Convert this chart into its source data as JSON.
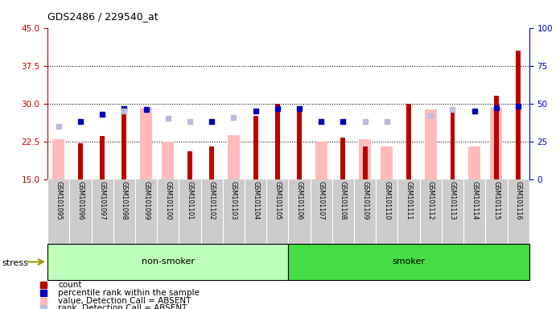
{
  "title": "GDS2486 / 229540_at",
  "samples": [
    "GSM101095",
    "GSM101096",
    "GSM101097",
    "GSM101098",
    "GSM101099",
    "GSM101100",
    "GSM101101",
    "GSM101102",
    "GSM101103",
    "GSM101104",
    "GSM101105",
    "GSM101106",
    "GSM101107",
    "GSM101108",
    "GSM101109",
    "GSM101110",
    "GSM101111",
    "GSM101112",
    "GSM101113",
    "GSM101114",
    "GSM101115",
    "GSM101116"
  ],
  "red_bar": [
    null,
    22.2,
    23.5,
    29.2,
    null,
    null,
    20.5,
    21.5,
    null,
    27.5,
    30.0,
    29.2,
    null,
    23.2,
    21.5,
    null,
    30.0,
    null,
    29.2,
    null,
    31.5,
    40.5
  ],
  "pink_bar": [
    23.0,
    null,
    null,
    null,
    29.2,
    22.5,
    null,
    null,
    23.8,
    null,
    null,
    null,
    22.5,
    null,
    23.0,
    21.5,
    null,
    28.8,
    null,
    21.5,
    29.2,
    null
  ],
  "blue_sq": [
    null,
    26.5,
    27.8,
    29.0,
    28.8,
    null,
    null,
    26.5,
    null,
    28.5,
    29.0,
    29.0,
    26.5,
    26.5,
    null,
    null,
    null,
    null,
    null,
    28.5,
    29.2,
    29.5
  ],
  "lblue_sq": [
    25.5,
    null,
    null,
    28.5,
    null,
    27.0,
    26.5,
    null,
    27.2,
    null,
    null,
    null,
    null,
    null,
    26.5,
    26.5,
    null,
    27.5,
    28.8,
    null,
    null,
    null
  ],
  "non_smoker_count": 11,
  "ylim_left": [
    15,
    45
  ],
  "ylim_right": [
    0,
    100
  ],
  "yticks_left": [
    15,
    22.5,
    30,
    37.5,
    45
  ],
  "yticks_right": [
    0,
    25,
    50,
    75,
    100
  ],
  "red_color": "#bb0000",
  "pink_color": "#ffbbbb",
  "blue_color": "#0000bb",
  "lblue_color": "#bbbbdd",
  "nonsmoker_color": "#bbffbb",
  "smoker_color": "#44dd44",
  "axis_bg": "#ffffff",
  "xlabel_bg": "#cccccc",
  "grid_color": "#000000",
  "legend_items": [
    {
      "color": "#bb0000",
      "label": "count"
    },
    {
      "color": "#0000bb",
      "label": "percentile rank within the sample"
    },
    {
      "color": "#ffbbbb",
      "label": "value, Detection Call = ABSENT"
    },
    {
      "color": "#bbbbdd",
      "label": "rank, Detection Call = ABSENT"
    }
  ]
}
